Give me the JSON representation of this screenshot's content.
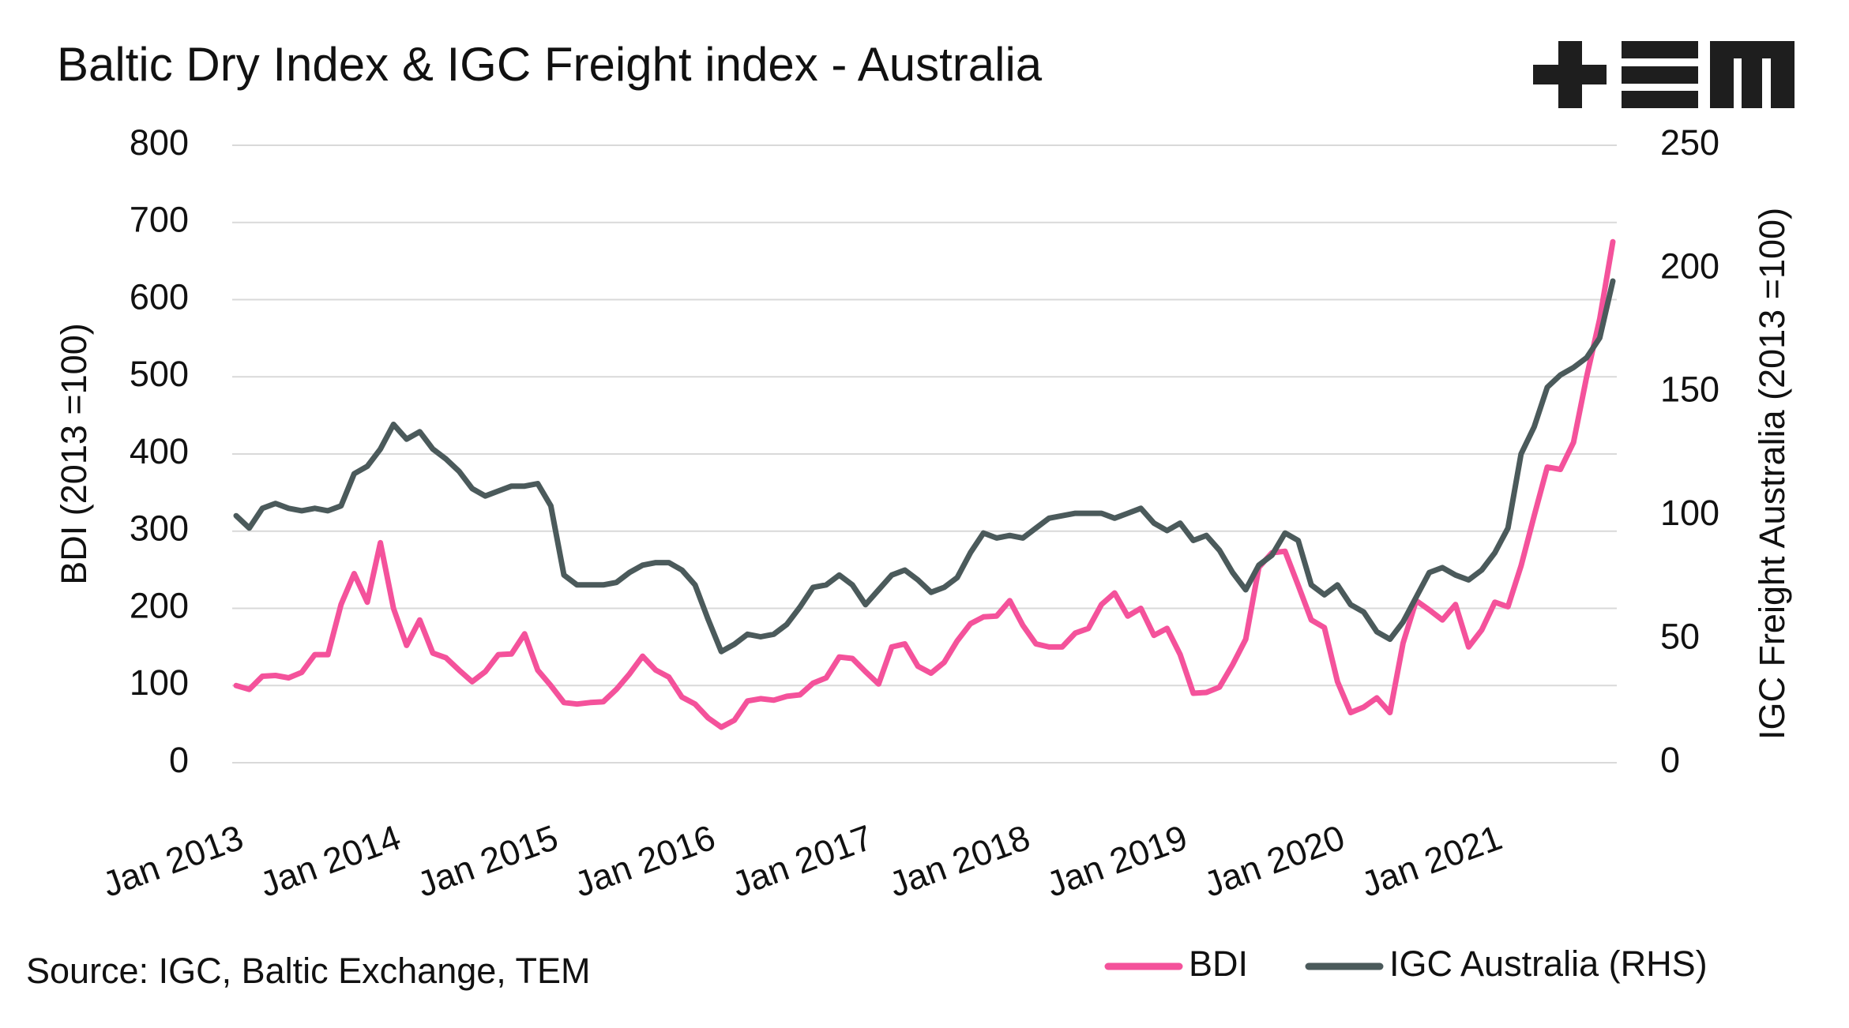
{
  "chart_data": {
    "type": "line",
    "title": "Baltic Dry Index & IGC Freight index - Australia",
    "source": "Source: IGC, Baltic Exchange, TEM",
    "y_label": "BDI (2013 =100)",
    "y2_label": "IGC Freight Australia (2013 =100)",
    "x": [
      "Jan 2013",
      null,
      null,
      null,
      null,
      null,
      null,
      null,
      null,
      null,
      null,
      null,
      "Jan 2014",
      null,
      null,
      null,
      null,
      null,
      null,
      null,
      null,
      null,
      null,
      null,
      "Jan 2015",
      null,
      null,
      null,
      null,
      null,
      null,
      null,
      null,
      null,
      null,
      null,
      "Jan 2016",
      null,
      null,
      null,
      null,
      null,
      null,
      null,
      null,
      null,
      null,
      null,
      "Jan 2017",
      null,
      null,
      null,
      null,
      null,
      null,
      null,
      null,
      null,
      null,
      null,
      "Jan 2018",
      null,
      null,
      null,
      null,
      null,
      null,
      null,
      null,
      null,
      null,
      null,
      "Jan 2019",
      null,
      null,
      null,
      null,
      null,
      null,
      null,
      null,
      null,
      null,
      null,
      "Jan 2020",
      null,
      null,
      null,
      null,
      null,
      null,
      null,
      null,
      null,
      null,
      null,
      "Jan 2021",
      null,
      null,
      null,
      null,
      null,
      null,
      null,
      null,
      null
    ],
    "series": [
      {
        "name": "BDI",
        "color": "#f4529b",
        "axis": "y",
        "values": [
          100,
          95,
          112,
          113,
          110,
          117,
          140,
          140,
          205,
          245,
          208,
          285,
          200,
          152,
          185,
          142,
          136,
          120,
          105,
          118,
          140,
          141,
          167,
          120,
          100,
          78,
          76,
          78,
          79,
          95,
          115,
          138,
          120,
          111,
          85,
          76,
          58,
          46,
          55,
          80,
          83,
          81,
          86,
          88,
          103,
          110,
          137,
          135,
          118,
          102,
          150,
          154,
          125,
          116,
          130,
          158,
          180,
          189,
          190,
          210,
          178,
          154,
          150,
          150,
          168,
          174,
          205,
          220,
          190,
          200,
          165,
          174,
          140,
          90,
          91,
          98,
          127,
          160,
          253,
          272,
          274,
          230,
          185,
          175,
          105,
          65,
          72,
          84,
          65,
          155,
          210,
          198,
          185,
          205,
          150,
          172,
          208,
          202,
          255,
          320,
          383,
          380,
          415,
          500,
          575,
          675
        ]
      },
      {
        "name": "IGC Australia (RHS)",
        "color": "#4b5a5b",
        "axis": "y2",
        "values": [
          100,
          95,
          103,
          105,
          103,
          102,
          103,
          102,
          104,
          117,
          120,
          127,
          137,
          131,
          134,
          127,
          123,
          118,
          111,
          108,
          110,
          112,
          112,
          113,
          104,
          76,
          72,
          72,
          72,
          73,
          77,
          80,
          81,
          81,
          78,
          72,
          58,
          45,
          48,
          52,
          51,
          52,
          56,
          63,
          71,
          72,
          76,
          72,
          64,
          70,
          76,
          78,
          74,
          69,
          71,
          75,
          85,
          93,
          91,
          92,
          91,
          95,
          99,
          100,
          101,
          101,
          101,
          99,
          101,
          103,
          97,
          94,
          97,
          90,
          92,
          86,
          77,
          70,
          80,
          84,
          93,
          90,
          72,
          68,
          72,
          64,
          61,
          53,
          50,
          57,
          67,
          77,
          79,
          76,
          74,
          78,
          85,
          95,
          125,
          136,
          152,
          157,
          160,
          164,
          172,
          195
        ]
      }
    ],
    "ylim": [
      0,
      800
    ],
    "yticks": [
      0,
      100,
      200,
      300,
      400,
      500,
      600,
      700,
      800
    ],
    "y2lim": [
      0,
      250
    ],
    "y2ticks": [
      0,
      50,
      100,
      150,
      200,
      250
    ],
    "grid": true,
    "legend": "bottom-right"
  }
}
